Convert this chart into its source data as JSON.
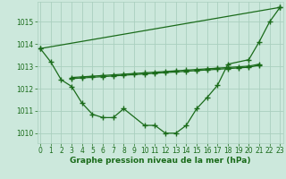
{
  "line_diagonal": {
    "x": [
      0,
      23
    ],
    "y": [
      1013.8,
      1015.65
    ]
  },
  "line_ucurve": {
    "x": [
      0,
      1,
      2,
      3,
      4,
      5,
      6,
      7,
      8,
      10,
      11,
      12,
      13,
      14,
      15,
      16,
      17,
      18,
      20,
      21,
      22,
      23
    ],
    "y": [
      1013.8,
      1013.2,
      1012.4,
      1012.1,
      1011.35,
      1010.85,
      1010.7,
      1010.7,
      1011.1,
      1010.35,
      1010.35,
      1010.0,
      1010.0,
      1010.35,
      1011.1,
      1011.6,
      1012.15,
      1013.1,
      1013.3,
      1014.1,
      1015.0,
      1015.65
    ]
  },
  "line_flat1": {
    "x": [
      3,
      4,
      5,
      6,
      7,
      8,
      9,
      10,
      11,
      12,
      13,
      14,
      15,
      16,
      17,
      18,
      19,
      20,
      21
    ],
    "y": [
      1012.5,
      1012.53,
      1012.56,
      1012.59,
      1012.62,
      1012.65,
      1012.68,
      1012.71,
      1012.74,
      1012.77,
      1012.8,
      1012.83,
      1012.86,
      1012.89,
      1012.92,
      1012.95,
      1012.98,
      1013.01,
      1013.1
    ]
  },
  "line_flat2": {
    "x": [
      3,
      4,
      5,
      6,
      7,
      8,
      9,
      10,
      11,
      12,
      13,
      14,
      15,
      16,
      17,
      18,
      19,
      20,
      21
    ],
    "y": [
      1012.45,
      1012.48,
      1012.51,
      1012.54,
      1012.57,
      1012.6,
      1012.63,
      1012.66,
      1012.69,
      1012.72,
      1012.75,
      1012.78,
      1012.81,
      1012.84,
      1012.87,
      1012.9,
      1012.93,
      1012.96,
      1013.05
    ]
  },
  "ylim": [
    1009.55,
    1015.9
  ],
  "xlim": [
    -0.3,
    23.3
  ],
  "yticks": [
    1010,
    1011,
    1012,
    1013,
    1014,
    1015
  ],
  "xtick_labels": [
    "0",
    "1",
    "2",
    "3",
    "4",
    "5",
    "6",
    "7",
    "8",
    "9",
    "10",
    "11",
    "12",
    "13",
    "14",
    "15",
    "16",
    "17",
    "18",
    "19",
    "20",
    "21",
    "22",
    "23"
  ],
  "xticks": [
    0,
    1,
    2,
    3,
    4,
    5,
    6,
    7,
    8,
    9,
    10,
    11,
    12,
    13,
    14,
    15,
    16,
    17,
    18,
    19,
    20,
    21,
    22,
    23
  ],
  "xlabel": "Graphe pression niveau de la mer (hPa)",
  "bg_color": "#cce8dc",
  "grid_color": "#aacfbf",
  "line_color": "#1a6b1a",
  "marker": "+",
  "markersize": 4,
  "markeredgewidth": 1.0,
  "linewidth": 0.9,
  "xlabel_fontsize": 6.5,
  "tick_fontsize": 5.5
}
